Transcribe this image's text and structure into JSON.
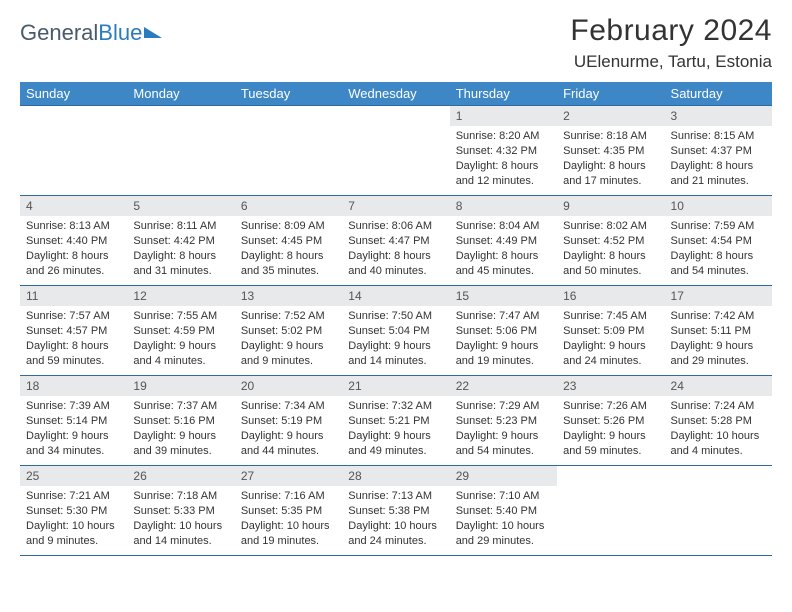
{
  "brand": {
    "name1": "General",
    "name2": "Blue"
  },
  "title": "February 2024",
  "location": "UElenurme, Tartu, Estonia",
  "colors": {
    "header_bg": "#3d87c7",
    "header_text": "#ffffff",
    "row_divider": "#2f6aa0",
    "daynum_bg": "#e8e9ea",
    "brand_gray": "#4a5a6a",
    "brand_blue": "#2b7bbf"
  },
  "daysOfWeek": [
    "Sunday",
    "Monday",
    "Tuesday",
    "Wednesday",
    "Thursday",
    "Friday",
    "Saturday"
  ],
  "weeks": [
    [
      {
        "n": "",
        "sr": "",
        "ss": "",
        "dl": ""
      },
      {
        "n": "",
        "sr": "",
        "ss": "",
        "dl": ""
      },
      {
        "n": "",
        "sr": "",
        "ss": "",
        "dl": ""
      },
      {
        "n": "",
        "sr": "",
        "ss": "",
        "dl": ""
      },
      {
        "n": "1",
        "sr": "8:20 AM",
        "ss": "4:32 PM",
        "dl": "8 hours and 12 minutes."
      },
      {
        "n": "2",
        "sr": "8:18 AM",
        "ss": "4:35 PM",
        "dl": "8 hours and 17 minutes."
      },
      {
        "n": "3",
        "sr": "8:15 AM",
        "ss": "4:37 PM",
        "dl": "8 hours and 21 minutes."
      }
    ],
    [
      {
        "n": "4",
        "sr": "8:13 AM",
        "ss": "4:40 PM",
        "dl": "8 hours and 26 minutes."
      },
      {
        "n": "5",
        "sr": "8:11 AM",
        "ss": "4:42 PM",
        "dl": "8 hours and 31 minutes."
      },
      {
        "n": "6",
        "sr": "8:09 AM",
        "ss": "4:45 PM",
        "dl": "8 hours and 35 minutes."
      },
      {
        "n": "7",
        "sr": "8:06 AM",
        "ss": "4:47 PM",
        "dl": "8 hours and 40 minutes."
      },
      {
        "n": "8",
        "sr": "8:04 AM",
        "ss": "4:49 PM",
        "dl": "8 hours and 45 minutes."
      },
      {
        "n": "9",
        "sr": "8:02 AM",
        "ss": "4:52 PM",
        "dl": "8 hours and 50 minutes."
      },
      {
        "n": "10",
        "sr": "7:59 AM",
        "ss": "4:54 PM",
        "dl": "8 hours and 54 minutes."
      }
    ],
    [
      {
        "n": "11",
        "sr": "7:57 AM",
        "ss": "4:57 PM",
        "dl": "8 hours and 59 minutes."
      },
      {
        "n": "12",
        "sr": "7:55 AM",
        "ss": "4:59 PM",
        "dl": "9 hours and 4 minutes."
      },
      {
        "n": "13",
        "sr": "7:52 AM",
        "ss": "5:02 PM",
        "dl": "9 hours and 9 minutes."
      },
      {
        "n": "14",
        "sr": "7:50 AM",
        "ss": "5:04 PM",
        "dl": "9 hours and 14 minutes."
      },
      {
        "n": "15",
        "sr": "7:47 AM",
        "ss": "5:06 PM",
        "dl": "9 hours and 19 minutes."
      },
      {
        "n": "16",
        "sr": "7:45 AM",
        "ss": "5:09 PM",
        "dl": "9 hours and 24 minutes."
      },
      {
        "n": "17",
        "sr": "7:42 AM",
        "ss": "5:11 PM",
        "dl": "9 hours and 29 minutes."
      }
    ],
    [
      {
        "n": "18",
        "sr": "7:39 AM",
        "ss": "5:14 PM",
        "dl": "9 hours and 34 minutes."
      },
      {
        "n": "19",
        "sr": "7:37 AM",
        "ss": "5:16 PM",
        "dl": "9 hours and 39 minutes."
      },
      {
        "n": "20",
        "sr": "7:34 AM",
        "ss": "5:19 PM",
        "dl": "9 hours and 44 minutes."
      },
      {
        "n": "21",
        "sr": "7:32 AM",
        "ss": "5:21 PM",
        "dl": "9 hours and 49 minutes."
      },
      {
        "n": "22",
        "sr": "7:29 AM",
        "ss": "5:23 PM",
        "dl": "9 hours and 54 minutes."
      },
      {
        "n": "23",
        "sr": "7:26 AM",
        "ss": "5:26 PM",
        "dl": "9 hours and 59 minutes."
      },
      {
        "n": "24",
        "sr": "7:24 AM",
        "ss": "5:28 PM",
        "dl": "10 hours and 4 minutes."
      }
    ],
    [
      {
        "n": "25",
        "sr": "7:21 AM",
        "ss": "5:30 PM",
        "dl": "10 hours and 9 minutes."
      },
      {
        "n": "26",
        "sr": "7:18 AM",
        "ss": "5:33 PM",
        "dl": "10 hours and 14 minutes."
      },
      {
        "n": "27",
        "sr": "7:16 AM",
        "ss": "5:35 PM",
        "dl": "10 hours and 19 minutes."
      },
      {
        "n": "28",
        "sr": "7:13 AM",
        "ss": "5:38 PM",
        "dl": "10 hours and 24 minutes."
      },
      {
        "n": "29",
        "sr": "7:10 AM",
        "ss": "5:40 PM",
        "dl": "10 hours and 29 minutes."
      },
      {
        "n": "",
        "sr": "",
        "ss": "",
        "dl": ""
      },
      {
        "n": "",
        "sr": "",
        "ss": "",
        "dl": ""
      }
    ]
  ],
  "labels": {
    "sunrise": "Sunrise: ",
    "sunset": "Sunset: ",
    "daylight": "Daylight: "
  }
}
